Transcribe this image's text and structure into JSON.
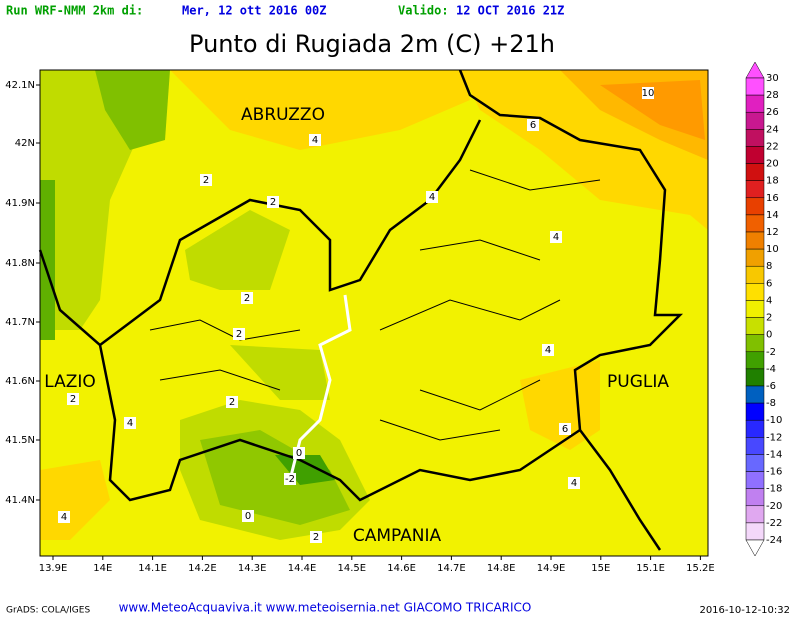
{
  "header": {
    "run_label": "Run WRF-NMM 2km di:",
    "run_date": "Mer, 12 ott 2016 00Z",
    "valid_label": "Valido:",
    "valid_date": "12 OCT 2016 21Z"
  },
  "title": "Punto di Rugiada 2m (C) +21h",
  "axes": {
    "lat_labels": [
      "42.1N",
      "42N",
      "41.9N",
      "41.8N",
      "41.7N",
      "41.6N",
      "41.5N",
      "41.4N"
    ],
    "lon_labels": [
      "13.9E",
      "14E",
      "14.1E",
      "14.2E",
      "14.3E",
      "14.4E",
      "14.5E",
      "14.6E",
      "14.7E",
      "14.8E",
      "14.9E",
      "15E",
      "15.1E",
      "15.2E"
    ]
  },
  "regions": [
    "ABRUZZO",
    "LAZIO",
    "PUGLIA",
    "CAMPANIA"
  ],
  "contour_labels": [
    "10",
    "6",
    "4",
    "2",
    "2",
    "4",
    "4",
    "2",
    "2",
    "4",
    "2",
    "4",
    "2",
    "6",
    "0",
    "-2",
    "4",
    "0",
    "4",
    "2"
  ],
  "colorbar": {
    "labels": [
      30,
      28,
      26,
      24,
      22,
      20,
      18,
      16,
      14,
      12,
      10,
      8,
      6,
      4,
      2,
      0,
      -2,
      -4,
      -6,
      -8,
      -10,
      -12,
      -14,
      -16,
      -18,
      -20,
      -22,
      -24
    ],
    "colors": [
      "#ff50ff",
      "#e020c0",
      "#c81890",
      "#c01060",
      "#c00030",
      "#d01010",
      "#e02020",
      "#e84000",
      "#f06000",
      "#f08000",
      "#f0a000",
      "#f8c800",
      "#ffe000",
      "#f0f000",
      "#c8e000",
      "#80c000",
      "#40a000",
      "#208000",
      "#0060c0",
      "#0000ff",
      "#2828ff",
      "#4848ff",
      "#6868ff",
      "#9070ff",
      "#c080f0",
      "#e0a8f0",
      "#f4d8fa"
    ]
  },
  "footer": {
    "software": "GrADS: COLA/IGES",
    "credits": "www.MeteoAcquaviva.it www.meteoisernia.net GIACOMO TRICARICO",
    "timestamp": "2016-10-12-10:32"
  }
}
